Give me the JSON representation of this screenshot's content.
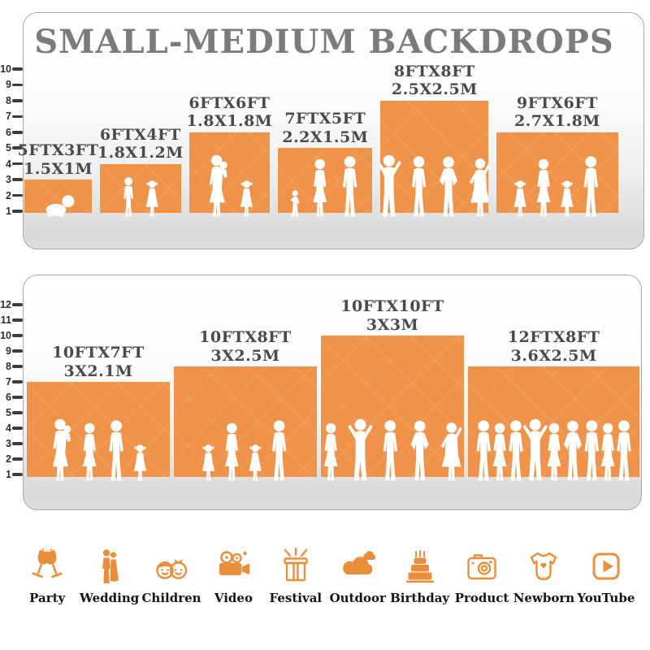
{
  "page_title": "SMALL-MEDIUM BACKDROPS",
  "colors": {
    "bar_orange": "#EE9349",
    "icon_orange": "#E98F3B",
    "title_gray": "#7B7B7B",
    "label_gray": "#4A4A4A",
    "ruler_dark": "#3C3C3C",
    "floor_gray": "#DCDCDC"
  },
  "chart_data": [
    {
      "type": "bar",
      "title": "SMALL-MEDIUM BACKDROPS",
      "xlabel": "",
      "ylabel": "height in feet (ruler)",
      "ylim": [
        0,
        10
      ],
      "grid": false,
      "legend": "none",
      "yticks": [
        1,
        2,
        3,
        4,
        5,
        6,
        7,
        8,
        9,
        10
      ],
      "categories": [
        "5FTX3FT",
        "6FTX4FT",
        "6FTX6FT",
        "7FTX5FT",
        "8FTX8FT",
        "9FTX6FT"
      ],
      "values": [
        3,
        4,
        6,
        5,
        8,
        6
      ],
      "bars": [
        {
          "label_ft": "5FTX3FT",
          "label_m": "1.5X1M",
          "width_ft": 5,
          "height_ft": 3,
          "figures": [
            "baby"
          ]
        },
        {
          "label_ft": "6FTX4FT",
          "label_m": "1.8X1.2M",
          "width_ft": 6,
          "height_ft": 4,
          "figures": [
            "boy",
            "girl"
          ]
        },
        {
          "label_ft": "6FTX6FT",
          "label_m": "1.8X1.8M",
          "width_ft": 6,
          "height_ft": 6,
          "figures": [
            "woman-baby",
            "girl"
          ]
        },
        {
          "label_ft": "7FTX5FT",
          "label_m": "2.2X1.5M",
          "width_ft": 7,
          "height_ft": 5,
          "figures": [
            "toddler",
            "woman",
            "man"
          ]
        },
        {
          "label_ft": "8FTX8FT",
          "label_m": "2.5X2.5M",
          "width_ft": 8,
          "height_ft": 8,
          "figures": [
            "man-pose",
            "man",
            "man-hips",
            "woman-pose"
          ]
        },
        {
          "label_ft": "9FTX6FT",
          "label_m": "2.7X1.8M",
          "width_ft": 9,
          "height_ft": 6,
          "figures": [
            "girl",
            "woman",
            "girl",
            "man"
          ]
        }
      ]
    },
    {
      "type": "bar",
      "title": "",
      "xlabel": "",
      "ylabel": "height in feet (ruler)",
      "ylim": [
        0,
        12
      ],
      "grid": false,
      "legend": "none",
      "yticks": [
        1,
        2,
        3,
        4,
        5,
        6,
        7,
        8,
        9,
        10,
        11,
        12
      ],
      "categories": [
        "10FTX7FT",
        "10FTX8FT",
        "10FTX10FT",
        "12FTX8FT"
      ],
      "values": [
        7,
        8,
        10,
        8
      ],
      "bars": [
        {
          "label_ft": "10FTX7FT",
          "label_m": "3X2.1M",
          "width_ft": 10,
          "height_ft": 7,
          "figures": [
            "woman-baby",
            "woman",
            "man",
            "girl"
          ]
        },
        {
          "label_ft": "10FTX8FT",
          "label_m": "3X2.5M",
          "width_ft": 10,
          "height_ft": 8,
          "figures": [
            "girl",
            "woman",
            "girl",
            "man"
          ]
        },
        {
          "label_ft": "10FTX10FT",
          "label_m": "3X3M",
          "width_ft": 10,
          "height_ft": 10,
          "figures": [
            "woman",
            "man-pose",
            "man",
            "man-hips",
            "woman-pose"
          ]
        },
        {
          "label_ft": "12FTX8FT",
          "label_m": "3.6X2.5M",
          "width_ft": 12,
          "height_ft": 8,
          "figures": [
            "man",
            "woman",
            "man",
            "man-pose",
            "woman",
            "man-hips",
            "man",
            "woman",
            "man"
          ]
        }
      ]
    }
  ],
  "footer": {
    "items": [
      {
        "label": "Party",
        "icon": "party-icon"
      },
      {
        "label": "Wedding",
        "icon": "wedding-icon"
      },
      {
        "label": "Children",
        "icon": "children-icon"
      },
      {
        "label": "Video",
        "icon": "video-icon"
      },
      {
        "label": "Festival",
        "icon": "festival-icon"
      },
      {
        "label": "Outdoor",
        "icon": "outdoor-icon"
      },
      {
        "label": "Birthday",
        "icon": "birthday-icon"
      },
      {
        "label": "Product",
        "icon": "product-icon"
      },
      {
        "label": "Newborn",
        "icon": "newborn-icon"
      },
      {
        "label": "YouTube",
        "icon": "youtube-icon"
      }
    ]
  }
}
